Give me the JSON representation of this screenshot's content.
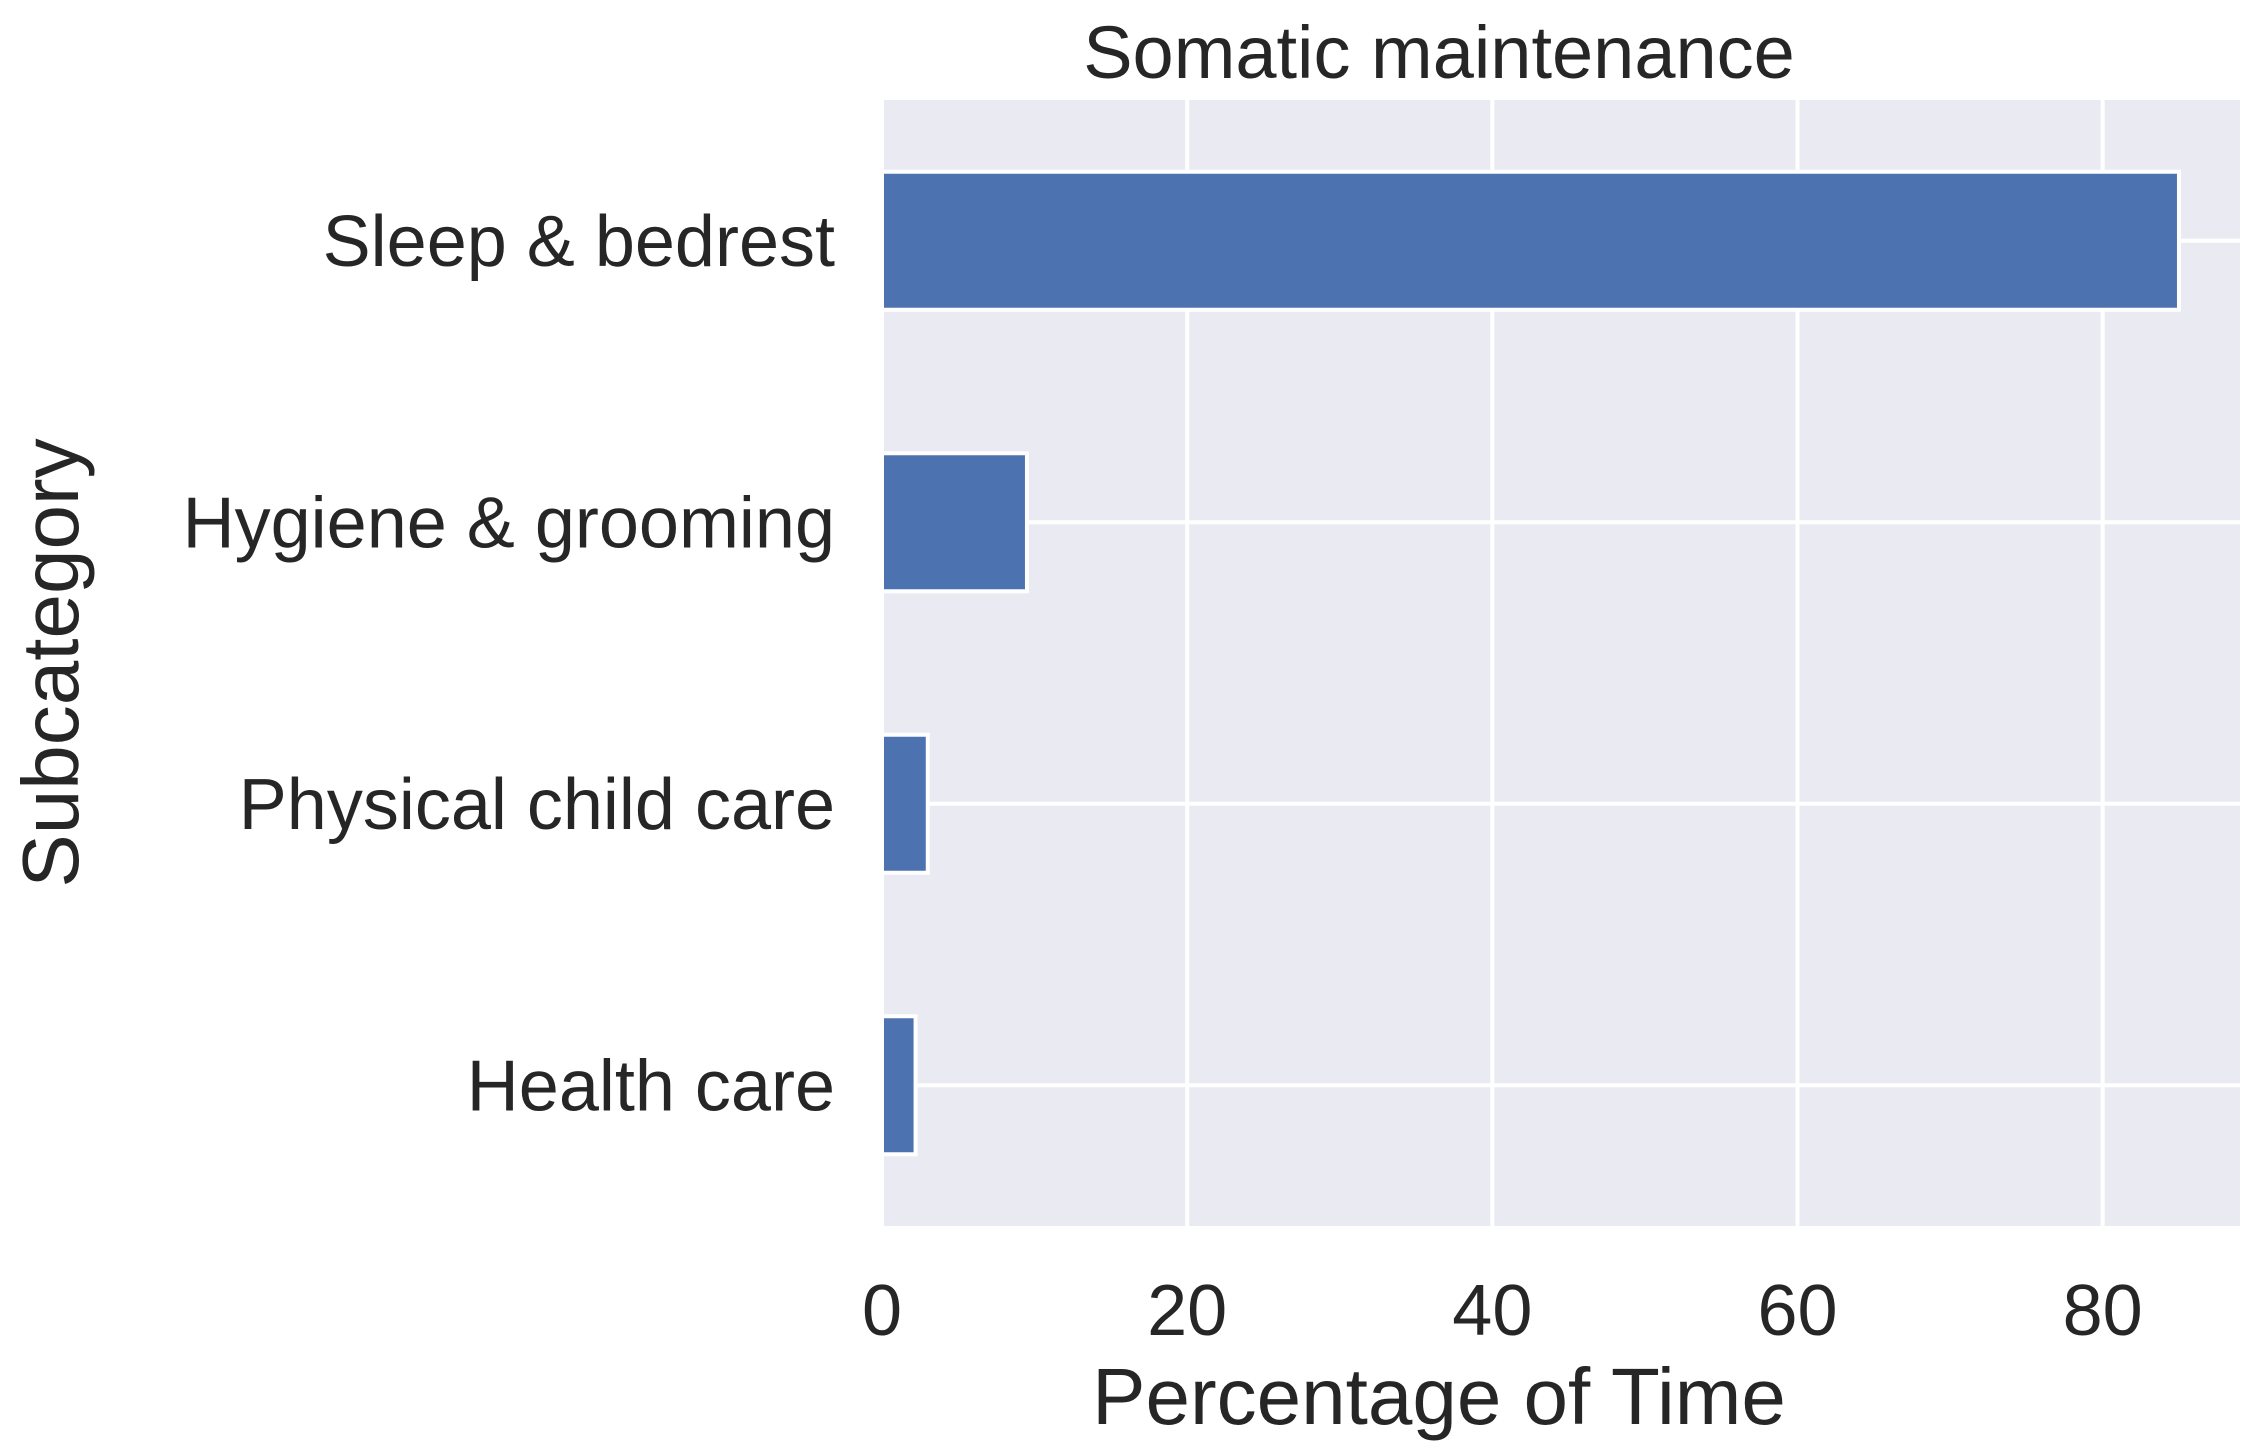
{
  "chart_data": {
    "type": "bar",
    "orientation": "horizontal",
    "title": "Somatic maintenance",
    "xlabel": "Percentage of Time",
    "ylabel": "Subcategory",
    "categories": [
      "Sleep & bedrest",
      "Hygiene & grooming",
      "Physical child care",
      "Health care"
    ],
    "values": [
      85.0,
      9.5,
      3.0,
      2.2
    ],
    "xlim": [
      0,
      89
    ],
    "xticks": [
      0,
      20,
      40,
      60,
      80
    ],
    "xtick_labels": [
      "0",
      "20",
      "40",
      "60",
      "80"
    ],
    "grid": true,
    "legend": null
  },
  "colors": {
    "bar": "#4c72b0",
    "plot_background": "#eaeaf2",
    "grid": "#ffffff",
    "text": "#262626"
  }
}
